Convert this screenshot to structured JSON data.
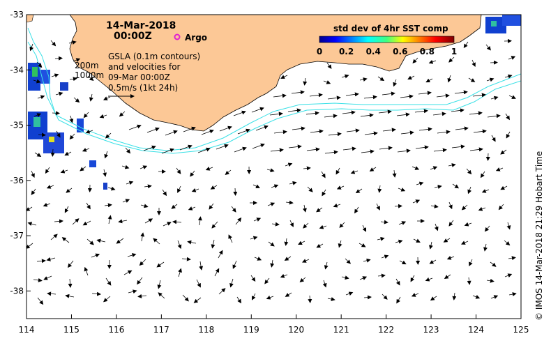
{
  "map": {
    "date_line1": "14-Mar-2018",
    "date_line2": "00:00Z",
    "argo_label": "Argo",
    "gsla_lines": [
      "GSLA (0.1m contours)",
      "and velocities for",
      "09-Mar 00:00Z",
      "0.5m/s (1kt 24h)"
    ],
    "depth_200": "200m",
    "depth_1000": "1000m",
    "colorbar_title": "std dev of 4hr SST comp",
    "colorbar_ticks": [
      "0",
      "0.2",
      "0.4",
      "0.6",
      "0.8",
      "1"
    ],
    "colorbar_range": [
      0,
      1
    ],
    "credit": "© IMOS 14-Mar-2018 21:29 Hobart Time",
    "lon_ticks": [
      "114",
      "115",
      "116",
      "117",
      "118",
      "119",
      "120",
      "121",
      "122",
      "123",
      "124",
      "125"
    ],
    "lat_ticks": [
      "-33",
      "-34",
      "-35",
      "-36",
      "-37",
      "-38"
    ],
    "lon_range": [
      114,
      125
    ],
    "lat_range": [
      -38.5,
      -33
    ],
    "colors": {
      "land": "#fcc896",
      "contour": "#38e0e6",
      "argo": "#e020d0",
      "background": "#ffffff"
    }
  }
}
